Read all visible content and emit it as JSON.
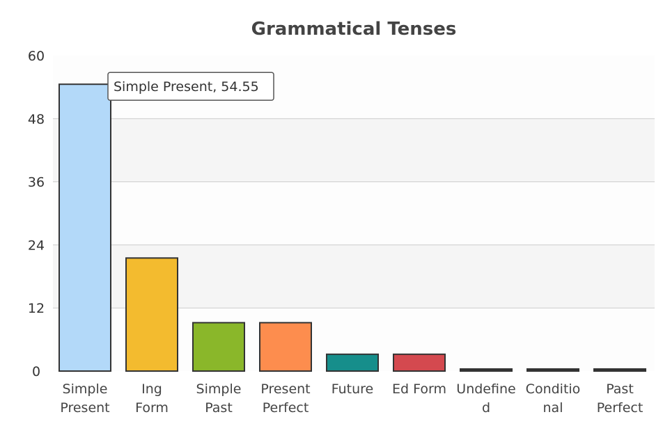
{
  "chart_data": {
    "type": "bar",
    "title": "Grammatical Tenses",
    "xlabel": "",
    "ylabel": "",
    "ylim": [
      0,
      60
    ],
    "yticks": [
      0,
      12,
      24,
      36,
      48,
      60
    ],
    "categories": [
      [
        "Simple",
        "Present"
      ],
      [
        "Ing",
        "Form"
      ],
      [
        "Simple",
        "Past"
      ],
      [
        "Present",
        "Perfect"
      ],
      [
        "Future"
      ],
      [
        "Ed Form"
      ],
      [
        "Undefine",
        "d"
      ],
      [
        "Conditio",
        "nal"
      ],
      [
        "Past",
        "Perfect"
      ]
    ],
    "values": [
      54.55,
      21.5,
      9.2,
      9.2,
      3.2,
      3.2,
      0.4,
      0.4,
      0.4
    ],
    "colors": [
      "#b3d9f9",
      "#f3bb2f",
      "#8ab72a",
      "#fd8d4e",
      "#168e8b",
      "#d4494f",
      "#333333",
      "#333333",
      "#333333"
    ],
    "grid": true,
    "tooltip": {
      "text": "Simple Present, 54.55",
      "category_index": 0
    }
  }
}
